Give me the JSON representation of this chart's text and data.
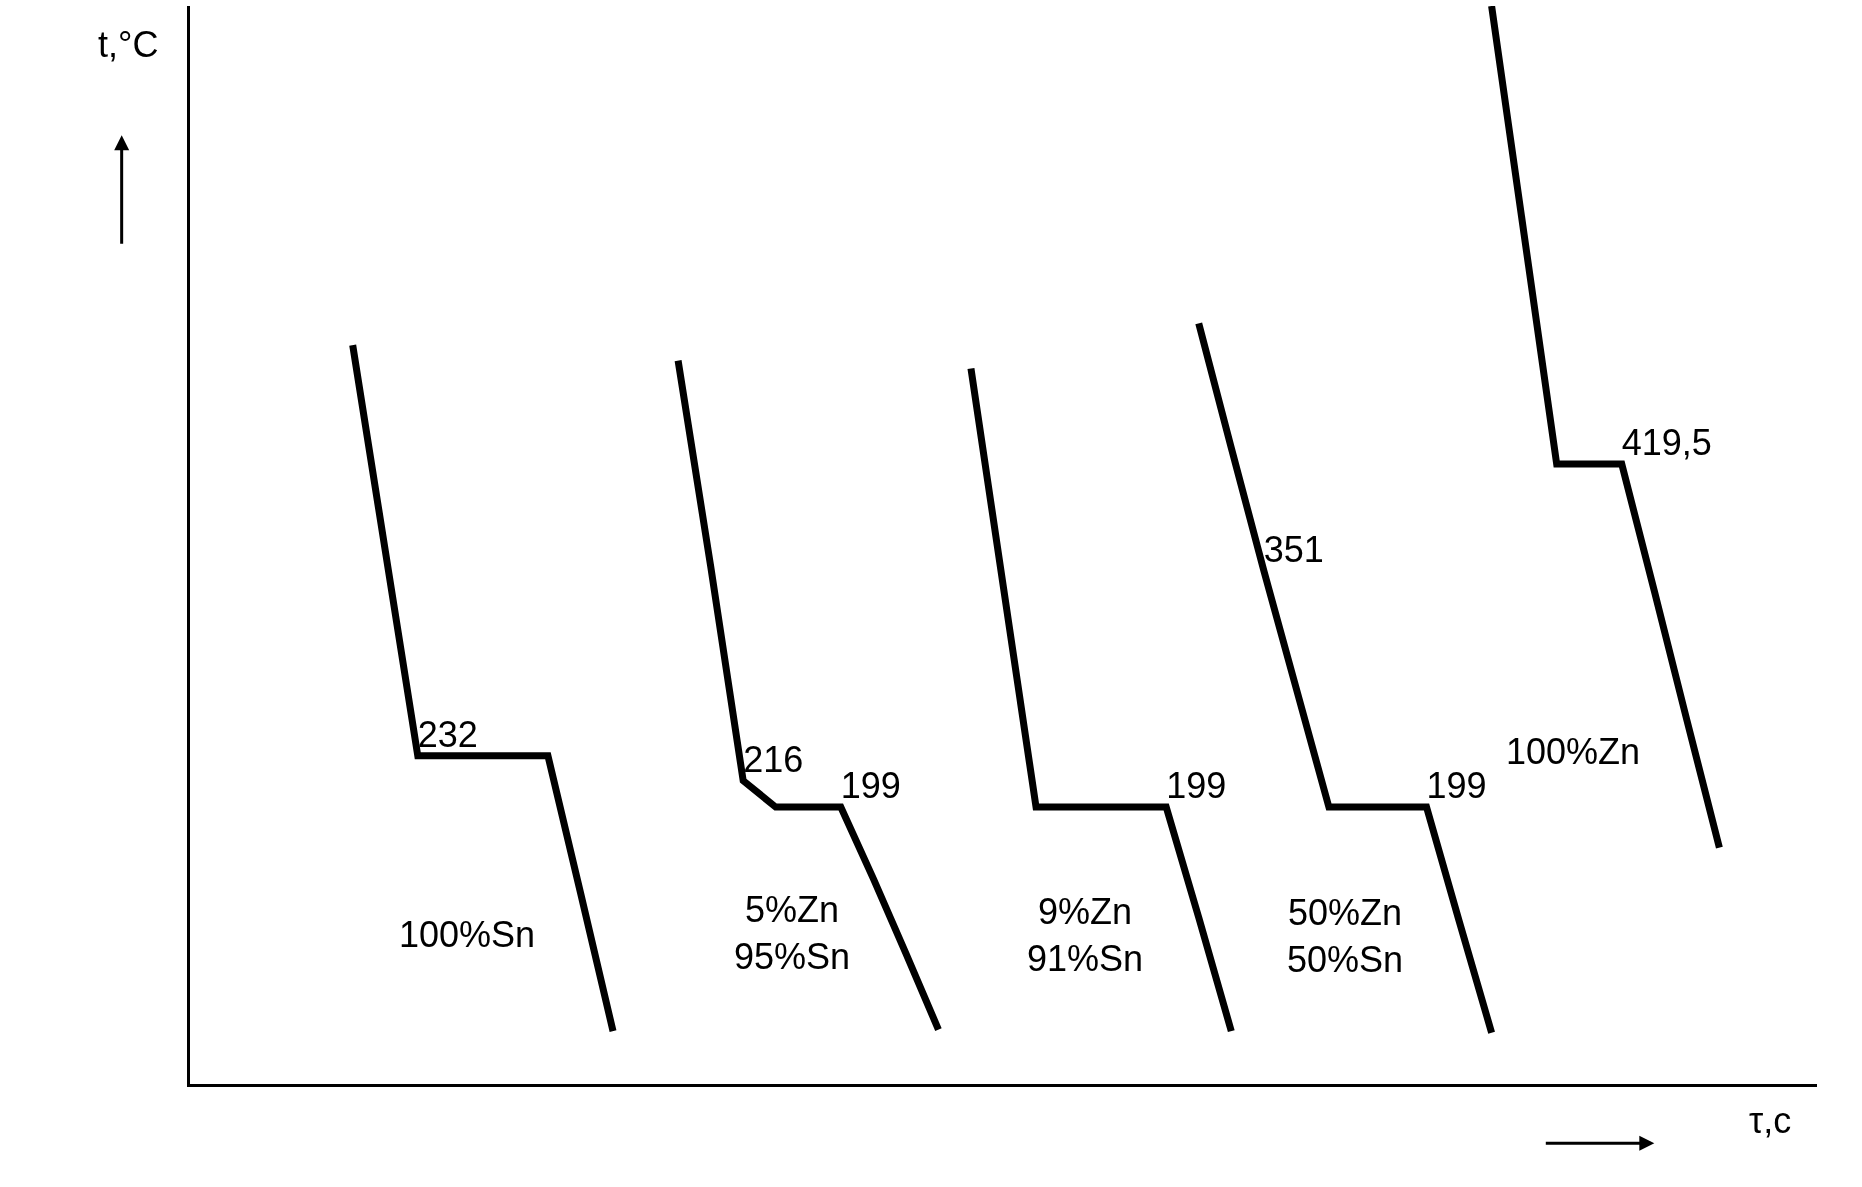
{
  "chart_data": {
    "type": "line",
    "xlabel": "τ,c",
    "ylabel": "t,°C",
    "ylim": [
      21,
      714
    ],
    "legend": false,
    "marker": "none",
    "line_style": "solid",
    "categories": [
      null,
      null,
      null,
      null,
      null,
      null,
      null,
      null,
      null,
      null,
      null,
      null,
      null,
      null,
      null,
      null,
      null,
      null,
      null,
      null,
      null,
      null,
      null,
      null,
      null,
      null,
      null,
      null,
      null,
      null,
      null,
      null,
      null,
      null,
      null,
      null,
      null,
      null,
      null,
      null,
      null,
      null,
      null,
      null,
      null,
      null,
      null,
      null,
      null,
      null,
      null
    ],
    "series": [
      {
        "name": "100%Sn",
        "color": "#000000",
        "values": [
          null,
          null,
          null,
          null,
          null,
          496,
          364,
          232,
          232,
          232,
          232,
          232,
          144,
          55,
          null,
          null,
          null,
          null,
          null,
          null,
          null,
          null,
          null,
          null,
          null,
          null,
          null,
          null,
          null,
          null,
          null,
          null,
          null,
          null,
          null,
          null,
          null,
          null,
          null,
          null,
          null,
          null,
          null,
          null,
          null,
          null,
          null,
          null,
          null,
          null,
          null
        ],
        "value_labels": [
          null,
          null,
          null,
          null,
          null,
          null,
          null,
          "232",
          null,
          null,
          null,
          null,
          null,
          null,
          null,
          null,
          null,
          null,
          null,
          null,
          null,
          null,
          null,
          null,
          null,
          null,
          null,
          null,
          null,
          null,
          null,
          null,
          null,
          null,
          null,
          null,
          null,
          null,
          null,
          null,
          null,
          null,
          null,
          null,
          null,
          null,
          null,
          null,
          null,
          null,
          null
        ]
      },
      {
        "name": "5%Zn\n95%Sn",
        "color": "#000000",
        "values": [
          null,
          null,
          null,
          null,
          null,
          null,
          null,
          null,
          null,
          null,
          null,
          null,
          null,
          null,
          null,
          486,
          354,
          216,
          199,
          199,
          199,
          153,
          105,
          56,
          null,
          null,
          null,
          null,
          null,
          null,
          null,
          null,
          null,
          null,
          null,
          null,
          null,
          null,
          null,
          null,
          null,
          null,
          null,
          null,
          null,
          null,
          null,
          null,
          null,
          null,
          null
        ],
        "value_labels": [
          null,
          null,
          null,
          null,
          null,
          null,
          null,
          null,
          null,
          null,
          null,
          null,
          null,
          null,
          null,
          null,
          null,
          "216",
          null,
          null,
          "199",
          null,
          null,
          null,
          null,
          null,
          null,
          null,
          null,
          null,
          null,
          null,
          null,
          null,
          null,
          null,
          null,
          null,
          null,
          null,
          null,
          null,
          null,
          null,
          null,
          null,
          null,
          null,
          null,
          null,
          null
        ]
      },
      {
        "name": "9%Zn\n91%Sn",
        "color": "#000000",
        "values": [
          null,
          null,
          null,
          null,
          null,
          null,
          null,
          null,
          null,
          null,
          null,
          null,
          null,
          null,
          null,
          null,
          null,
          null,
          null,
          null,
          null,
          null,
          null,
          null,
          481,
          340,
          199,
          199,
          199,
          199,
          199,
          128,
          55,
          null,
          null,
          null,
          null,
          null,
          null,
          null,
          null,
          null,
          null,
          null,
          null,
          null,
          null,
          null,
          null,
          null,
          null
        ],
        "value_labels": [
          null,
          null,
          null,
          null,
          null,
          null,
          null,
          null,
          null,
          null,
          null,
          null,
          null,
          null,
          null,
          null,
          null,
          null,
          null,
          null,
          null,
          null,
          null,
          null,
          null,
          null,
          null,
          null,
          null,
          null,
          "199",
          null,
          null,
          null,
          null,
          null,
          null,
          null,
          null,
          null,
          null,
          null,
          null,
          null,
          null,
          null,
          null,
          null,
          null,
          null,
          null
        ]
      },
      {
        "name": "50%Zn\n50%Sn",
        "color": "#000000",
        "values": [
          null,
          null,
          null,
          null,
          null,
          null,
          null,
          null,
          null,
          null,
          null,
          null,
          null,
          null,
          null,
          null,
          null,
          null,
          null,
          null,
          null,
          null,
          null,
          null,
          null,
          null,
          null,
          null,
          null,
          null,
          null,
          510,
          430,
          351,
          275,
          199,
          199,
          199,
          199,
          126,
          54,
          null,
          null,
          null,
          null,
          null,
          null,
          null,
          null,
          null,
          null
        ],
        "value_labels": [
          null,
          null,
          null,
          null,
          null,
          null,
          null,
          null,
          null,
          null,
          null,
          null,
          null,
          null,
          null,
          null,
          null,
          null,
          null,
          null,
          null,
          null,
          null,
          null,
          null,
          null,
          null,
          null,
          null,
          null,
          null,
          null,
          null,
          "351",
          null,
          null,
          null,
          null,
          "199",
          null,
          null,
          null,
          null,
          null,
          null,
          null,
          null,
          null,
          null,
          null,
          null
        ]
      },
      {
        "name": "100%Zn",
        "color": "#000000",
        "values": [
          null,
          null,
          null,
          null,
          null,
          null,
          null,
          null,
          null,
          null,
          null,
          null,
          null,
          null,
          null,
          null,
          null,
          null,
          null,
          null,
          null,
          null,
          null,
          null,
          null,
          null,
          null,
          null,
          null,
          null,
          null,
          null,
          null,
          null,
          null,
          null,
          null,
          null,
          null,
          null,
          714,
          567,
          419.5,
          419.5,
          419.5,
          338,
          255,
          173,
          null,
          null,
          null
        ],
        "value_labels": [
          null,
          null,
          null,
          null,
          null,
          null,
          null,
          null,
          null,
          null,
          null,
          null,
          null,
          null,
          null,
          null,
          null,
          null,
          null,
          null,
          null,
          null,
          null,
          null,
          null,
          null,
          null,
          null,
          null,
          null,
          null,
          null,
          null,
          null,
          null,
          null,
          null,
          null,
          null,
          null,
          null,
          null,
          null,
          null,
          "419,5",
          null,
          null,
          null,
          null,
          null,
          null
        ]
      }
    ]
  }
}
